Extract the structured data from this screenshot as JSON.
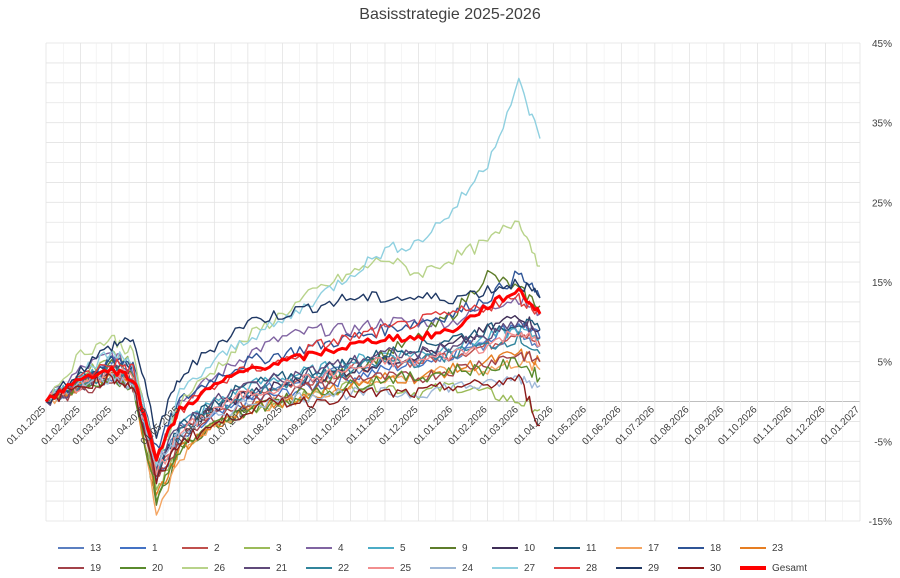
{
  "chart_data": {
    "type": "line",
    "title": "Basisstrategie 2025-2026",
    "xlabel": "",
    "ylabel": "",
    "x_ticks": [
      "01.01.2025",
      "01.02.2025",
      "01.03.2025",
      "01.04.2025",
      "01.05.2025",
      "01.06.2025",
      "01.07.2025",
      "01.08.2025",
      "01.09.2025",
      "01.10.2025",
      "01.11.2025",
      "01.12.2025",
      "01.01.2026",
      "01.02.2026",
      "01.03.2026",
      "01.04.2026",
      "01.05.2026",
      "01.06.2026",
      "01.07.2026",
      "01.08.2026",
      "01.09.2026",
      "01.10.2026",
      "01.11.2026",
      "01.12.2026",
      "01.01.2027"
    ],
    "y_ticks": [
      "45%",
      "35%",
      "25%",
      "15%",
      "5%",
      "-5%",
      "-15%"
    ],
    "ylim": [
      -15,
      45
    ],
    "y_axis_position": "right",
    "grid": true,
    "legend_position": "bottom",
    "x_points": [
      "01.01.2025",
      "01.02.2025",
      "01.03.2025",
      "20.03.2025",
      "10.04.2025",
      "01.05.2025",
      "01.06.2025",
      "01.07.2025",
      "01.08.2025",
      "01.09.2025",
      "01.10.2025",
      "01.11.2025",
      "01.12.2025",
      "01.01.2026",
      "01.02.2026",
      "01.03.2026",
      "20.03.2026"
    ],
    "series": [
      {
        "name": "13",
        "color": "#5b7fc0",
        "values": [
          0,
          2,
          3,
          2,
          -8,
          -3,
          -1,
          1,
          2,
          3,
          4,
          5,
          5,
          6,
          7,
          9,
          7
        ]
      },
      {
        "name": "1",
        "color": "#4472c4",
        "values": [
          0,
          3,
          5,
          4,
          -10,
          -5,
          -2,
          0,
          1,
          2,
          3,
          4,
          5,
          6,
          8,
          10,
          8
        ]
      },
      {
        "name": "2",
        "color": "#c0504d",
        "values": [
          0,
          2,
          4,
          3,
          -9,
          -4,
          -1,
          1,
          2,
          3,
          4,
          5,
          5,
          6,
          7,
          9,
          7
        ]
      },
      {
        "name": "3",
        "color": "#9bbb59",
        "values": [
          0,
          3,
          6,
          5,
          -11,
          -6,
          -3,
          -1,
          0,
          1,
          2,
          2,
          1,
          2,
          1,
          0,
          -1
        ]
      },
      {
        "name": "4",
        "color": "#8064a2",
        "values": [
          0,
          4,
          6,
          4,
          -7,
          0,
          3,
          6,
          8,
          9,
          9,
          10,
          10,
          10,
          12,
          13,
          11
        ]
      },
      {
        "name": "5",
        "color": "#4bacc6",
        "values": [
          0,
          3,
          4,
          3,
          -8,
          -3,
          0,
          2,
          3,
          4,
          5,
          6,
          6,
          7,
          8,
          9,
          8
        ]
      },
      {
        "name": "9",
        "color": "#5e7d2a",
        "values": [
          0,
          2,
          5,
          3,
          -13,
          -6,
          -3,
          -1,
          0,
          2,
          4,
          6,
          8,
          11,
          16,
          14,
          12
        ]
      },
      {
        "name": "10",
        "color": "#3f2e57",
        "values": [
          0,
          2,
          4,
          3,
          -9,
          -4,
          -1,
          1,
          2,
          3,
          4,
          5,
          6,
          7,
          9,
          11,
          9
        ]
      },
      {
        "name": "11",
        "color": "#1f5a7a",
        "values": [
          0,
          3,
          5,
          4,
          -9,
          -3,
          0,
          2,
          3,
          4,
          5,
          6,
          7,
          8,
          9,
          10,
          9
        ]
      },
      {
        "name": "17",
        "color": "#f4a460",
        "values": [
          0,
          2,
          4,
          3,
          -14,
          -7,
          -3,
          -1,
          0,
          1,
          2,
          3,
          3,
          4,
          4,
          5,
          4
        ]
      },
      {
        "name": "18",
        "color": "#2f5597",
        "values": [
          0,
          3,
          5,
          5,
          -6,
          0,
          3,
          5,
          6,
          7,
          8,
          9,
          10,
          11,
          13,
          16,
          13
        ]
      },
      {
        "name": "23",
        "color": "#e67e22",
        "values": [
          0,
          2,
          3,
          2,
          -12,
          -6,
          -3,
          -1,
          0,
          1,
          2,
          3,
          3,
          4,
          5,
          6,
          5
        ]
      },
      {
        "name": "19",
        "color": "#a3434a",
        "values": [
          0,
          1,
          3,
          2,
          -10,
          -5,
          -2,
          0,
          1,
          2,
          3,
          3,
          3,
          4,
          5,
          6,
          5
        ]
      },
      {
        "name": "20",
        "color": "#5a8a2c",
        "values": [
          0,
          2,
          3,
          2,
          -12,
          -6,
          -3,
          -1,
          0,
          1,
          2,
          3,
          3,
          4,
          4,
          5,
          3
        ]
      },
      {
        "name": "26",
        "color": "#b8d38a",
        "values": [
          0,
          6,
          8,
          6,
          -8,
          0,
          4,
          8,
          11,
          14,
          16,
          18,
          16,
          18,
          20,
          23,
          17
        ]
      },
      {
        "name": "21",
        "color": "#604a7b",
        "values": [
          0,
          2,
          4,
          3,
          -8,
          -3,
          0,
          2,
          3,
          4,
          5,
          6,
          6,
          7,
          8,
          10,
          8
        ]
      },
      {
        "name": "22",
        "color": "#31859c",
        "values": [
          0,
          2,
          4,
          3,
          -9,
          -4,
          -1,
          1,
          2,
          3,
          4,
          5,
          5,
          6,
          7,
          8,
          6
        ]
      },
      {
        "name": "25",
        "color": "#f28e8e",
        "values": [
          0,
          2,
          4,
          3,
          -9,
          -4,
          -1,
          1,
          2,
          3,
          4,
          5,
          5,
          6,
          7,
          9,
          7
        ]
      },
      {
        "name": "24",
        "color": "#9fb8d8",
        "values": [
          0,
          2,
          3,
          2,
          -8,
          -4,
          -2,
          0,
          0,
          1,
          1,
          1,
          1,
          2,
          2,
          3,
          2
        ]
      },
      {
        "name": "27",
        "color": "#8fd0e0",
        "values": [
          0,
          4,
          6,
          5,
          -8,
          1,
          5,
          8,
          10,
          13,
          16,
          19,
          20,
          24,
          30,
          40,
          33
        ]
      },
      {
        "name": "28",
        "color": "#e03a3a",
        "values": [
          0,
          3,
          5,
          4,
          -7,
          -1,
          2,
          4,
          5,
          7,
          8,
          9,
          10,
          11,
          12,
          13,
          11
        ]
      },
      {
        "name": "29",
        "color": "#1f3864",
        "values": [
          0,
          4,
          7,
          8,
          -4,
          3,
          7,
          10,
          11,
          12,
          13,
          13,
          13,
          13,
          14,
          15,
          13
        ]
      },
      {
        "name": "30",
        "color": "#8b1a1a",
        "values": [
          0,
          2,
          3,
          2,
          -10,
          -5,
          -3,
          -1,
          0,
          0,
          1,
          1,
          1,
          2,
          2,
          3,
          -3
        ]
      },
      {
        "name": "Gesamt",
        "color": "#ff0000",
        "thick": true,
        "values": [
          0,
          3,
          4,
          3,
          -7,
          -1,
          2,
          4,
          5,
          6,
          7,
          8,
          8,
          9,
          12,
          14,
          11
        ]
      }
    ]
  }
}
